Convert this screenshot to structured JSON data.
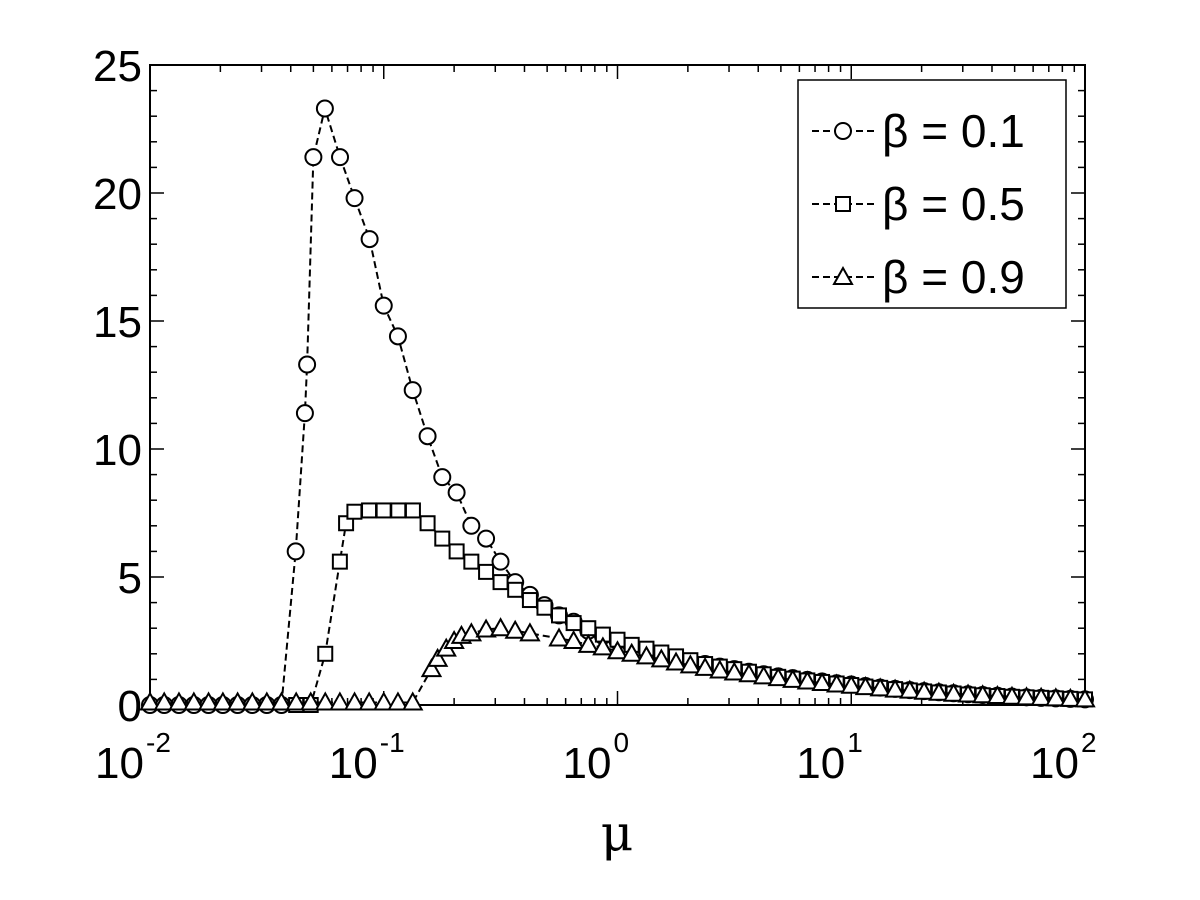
{
  "chart_data": {
    "type": "line",
    "xlabel": "μ",
    "ylabel": "",
    "xscale": "log",
    "xlim": [
      0.01,
      100
    ],
    "ylim": [
      0,
      25
    ],
    "grid": false,
    "legend_position": "top-right",
    "x_ticks": [
      {
        "value": 0.01,
        "base": "10",
        "exp": "-2"
      },
      {
        "value": 0.1,
        "base": "10",
        "exp": "-1"
      },
      {
        "value": 1,
        "base": "10",
        "exp": "0"
      },
      {
        "value": 10,
        "base": "10",
        "exp": "1"
      },
      {
        "value": 100,
        "base": "10",
        "exp": "2"
      }
    ],
    "y_ticks": [
      {
        "value": 0,
        "label": "0"
      },
      {
        "value": 5,
        "label": "5"
      },
      {
        "value": 10,
        "label": "10"
      },
      {
        "value": 15,
        "label": "15"
      },
      {
        "value": 20,
        "label": "20"
      },
      {
        "value": 25,
        "label": "25"
      }
    ],
    "series": [
      {
        "name": "β = 0.1",
        "marker": "circle",
        "points": [
          [
            0.01,
            0
          ],
          [
            0.0115,
            0
          ],
          [
            0.0133,
            0
          ],
          [
            0.0154,
            0
          ],
          [
            0.0178,
            0
          ],
          [
            0.0205,
            0
          ],
          [
            0.0237,
            0
          ],
          [
            0.0274,
            0
          ],
          [
            0.0316,
            0
          ],
          [
            0.0365,
            0
          ],
          [
            0.042,
            6.0
          ],
          [
            0.046,
            11.4
          ],
          [
            0.047,
            13.3
          ],
          [
            0.05,
            21.4
          ],
          [
            0.056,
            23.3
          ],
          [
            0.065,
            21.4
          ],
          [
            0.075,
            19.8
          ],
          [
            0.087,
            18.2
          ],
          [
            0.1,
            15.6
          ],
          [
            0.115,
            14.4
          ],
          [
            0.133,
            12.3
          ],
          [
            0.154,
            10.5
          ],
          [
            0.178,
            8.9
          ],
          [
            0.205,
            8.3
          ],
          [
            0.237,
            7.0
          ],
          [
            0.274,
            6.5
          ],
          [
            0.316,
            5.6
          ],
          [
            0.365,
            4.8
          ],
          [
            0.422,
            4.3
          ],
          [
            0.487,
            3.9
          ],
          [
            0.562,
            3.5
          ],
          [
            0.649,
            3.25
          ],
          [
            0.75,
            2.9
          ],
          [
            0.866,
            2.7
          ],
          [
            1.0,
            2.5
          ],
          [
            1.15,
            2.3
          ],
          [
            1.33,
            2.15
          ],
          [
            1.54,
            2.0
          ],
          [
            1.78,
            1.85
          ],
          [
            2.05,
            1.7
          ],
          [
            2.37,
            1.6
          ],
          [
            2.74,
            1.5
          ],
          [
            3.16,
            1.4
          ],
          [
            3.65,
            1.3
          ],
          [
            4.22,
            1.2
          ],
          [
            4.87,
            1.12
          ],
          [
            5.62,
            1.05
          ],
          [
            6.49,
            0.98
          ],
          [
            7.5,
            0.92
          ],
          [
            8.66,
            0.85
          ],
          [
            10.0,
            0.8
          ],
          [
            11.5,
            0.74
          ],
          [
            13.3,
            0.68
          ],
          [
            15.4,
            0.63
          ],
          [
            17.8,
            0.58
          ],
          [
            20.5,
            0.54
          ],
          [
            23.7,
            0.5
          ],
          [
            27.4,
            0.46
          ],
          [
            31.6,
            0.42
          ],
          [
            36.5,
            0.39
          ],
          [
            42.2,
            0.36
          ],
          [
            48.7,
            0.33
          ],
          [
            56.2,
            0.3
          ],
          [
            64.9,
            0.28
          ],
          [
            75.0,
            0.26
          ],
          [
            86.6,
            0.24
          ],
          [
            100,
            0.22
          ]
        ]
      },
      {
        "name": "β = 0.5",
        "marker": "square",
        "points": [
          [
            0.0422,
            0
          ],
          [
            0.0487,
            0
          ],
          [
            0.0562,
            2.0
          ],
          [
            0.0649,
            5.6
          ],
          [
            0.069,
            7.1
          ],
          [
            0.0749,
            7.55
          ],
          [
            0.0865,
            7.6
          ],
          [
            0.0999,
            7.6
          ],
          [
            0.1154,
            7.6
          ],
          [
            0.1333,
            7.6
          ],
          [
            0.154,
            7.1
          ],
          [
            0.178,
            6.5
          ],
          [
            0.205,
            6.0
          ],
          [
            0.237,
            5.6
          ],
          [
            0.274,
            5.2
          ],
          [
            0.316,
            4.8
          ],
          [
            0.365,
            4.5
          ],
          [
            0.422,
            4.1
          ],
          [
            0.487,
            3.8
          ],
          [
            0.562,
            3.5
          ],
          [
            0.649,
            3.2
          ],
          [
            0.75,
            3.0
          ],
          [
            0.866,
            2.75
          ],
          [
            1.0,
            2.55
          ],
          [
            1.15,
            2.35
          ],
          [
            1.33,
            2.2
          ],
          [
            1.54,
            2.05
          ],
          [
            1.78,
            1.9
          ],
          [
            2.05,
            1.75
          ],
          [
            2.37,
            1.6
          ],
          [
            2.74,
            1.5
          ],
          [
            3.16,
            1.4
          ],
          [
            3.65,
            1.3
          ],
          [
            4.22,
            1.2
          ],
          [
            4.87,
            1.1
          ],
          [
            5.62,
            1.03
          ],
          [
            6.49,
            0.96
          ],
          [
            7.5,
            0.9
          ],
          [
            8.66,
            0.84
          ],
          [
            10.0,
            0.78
          ],
          [
            11.5,
            0.72
          ],
          [
            13.3,
            0.67
          ],
          [
            15.4,
            0.62
          ],
          [
            17.8,
            0.57
          ],
          [
            20.5,
            0.53
          ],
          [
            23.7,
            0.49
          ],
          [
            27.4,
            0.45
          ],
          [
            31.6,
            0.41
          ],
          [
            36.5,
            0.38
          ],
          [
            42.2,
            0.35
          ],
          [
            48.7,
            0.32
          ],
          [
            56.2,
            0.3
          ],
          [
            64.9,
            0.28
          ],
          [
            75.0,
            0.26
          ],
          [
            86.6,
            0.24
          ],
          [
            100,
            0.22
          ]
        ]
      },
      {
        "name": "β = 0.9",
        "marker": "triangle",
        "points": [
          [
            0.01,
            0.1
          ],
          [
            0.0115,
            0.1
          ],
          [
            0.0133,
            0.1
          ],
          [
            0.0154,
            0.1
          ],
          [
            0.0178,
            0.1
          ],
          [
            0.0205,
            0.1
          ],
          [
            0.0237,
            0.1
          ],
          [
            0.0274,
            0.1
          ],
          [
            0.0316,
            0.1
          ],
          [
            0.0365,
            0.1
          ],
          [
            0.0422,
            0.1
          ],
          [
            0.0487,
            0.1
          ],
          [
            0.0562,
            0.1
          ],
          [
            0.0649,
            0.1
          ],
          [
            0.075,
            0.1
          ],
          [
            0.0866,
            0.1
          ],
          [
            0.1,
            0.1
          ],
          [
            0.115,
            0.1
          ],
          [
            0.133,
            0.1
          ],
          [
            0.16,
            1.4
          ],
          [
            0.17,
            1.8
          ],
          [
            0.185,
            2.2
          ],
          [
            0.2,
            2.5
          ],
          [
            0.215,
            2.7
          ],
          [
            0.237,
            2.8
          ],
          [
            0.274,
            2.95
          ],
          [
            0.316,
            3.0
          ],
          [
            0.365,
            2.9
          ],
          [
            0.422,
            2.8
          ],
          [
            0.562,
            2.6
          ],
          [
            0.649,
            2.5
          ],
          [
            0.75,
            2.35
          ],
          [
            0.866,
            2.25
          ],
          [
            1.0,
            2.1
          ],
          [
            1.15,
            2.0
          ],
          [
            1.33,
            1.9
          ],
          [
            1.54,
            1.78
          ],
          [
            1.78,
            1.66
          ],
          [
            2.05,
            1.55
          ],
          [
            2.37,
            1.45
          ],
          [
            2.74,
            1.35
          ],
          [
            3.16,
            1.27
          ],
          [
            3.65,
            1.2
          ],
          [
            4.22,
            1.12
          ],
          [
            4.87,
            1.05
          ],
          [
            5.62,
            0.98
          ],
          [
            6.49,
            0.92
          ],
          [
            7.5,
            0.86
          ],
          [
            8.66,
            0.8
          ],
          [
            10.0,
            0.75
          ],
          [
            11.5,
            0.7
          ],
          [
            13.3,
            0.65
          ],
          [
            15.4,
            0.6
          ],
          [
            17.8,
            0.56
          ],
          [
            20.5,
            0.52
          ],
          [
            23.7,
            0.48
          ],
          [
            27.4,
            0.44
          ],
          [
            31.6,
            0.41
          ],
          [
            36.5,
            0.38
          ],
          [
            42.2,
            0.35
          ],
          [
            48.7,
            0.32
          ],
          [
            56.2,
            0.3
          ],
          [
            64.9,
            0.28
          ],
          [
            75.0,
            0.26
          ],
          [
            86.6,
            0.24
          ],
          [
            100,
            0.22
          ]
        ]
      }
    ]
  }
}
